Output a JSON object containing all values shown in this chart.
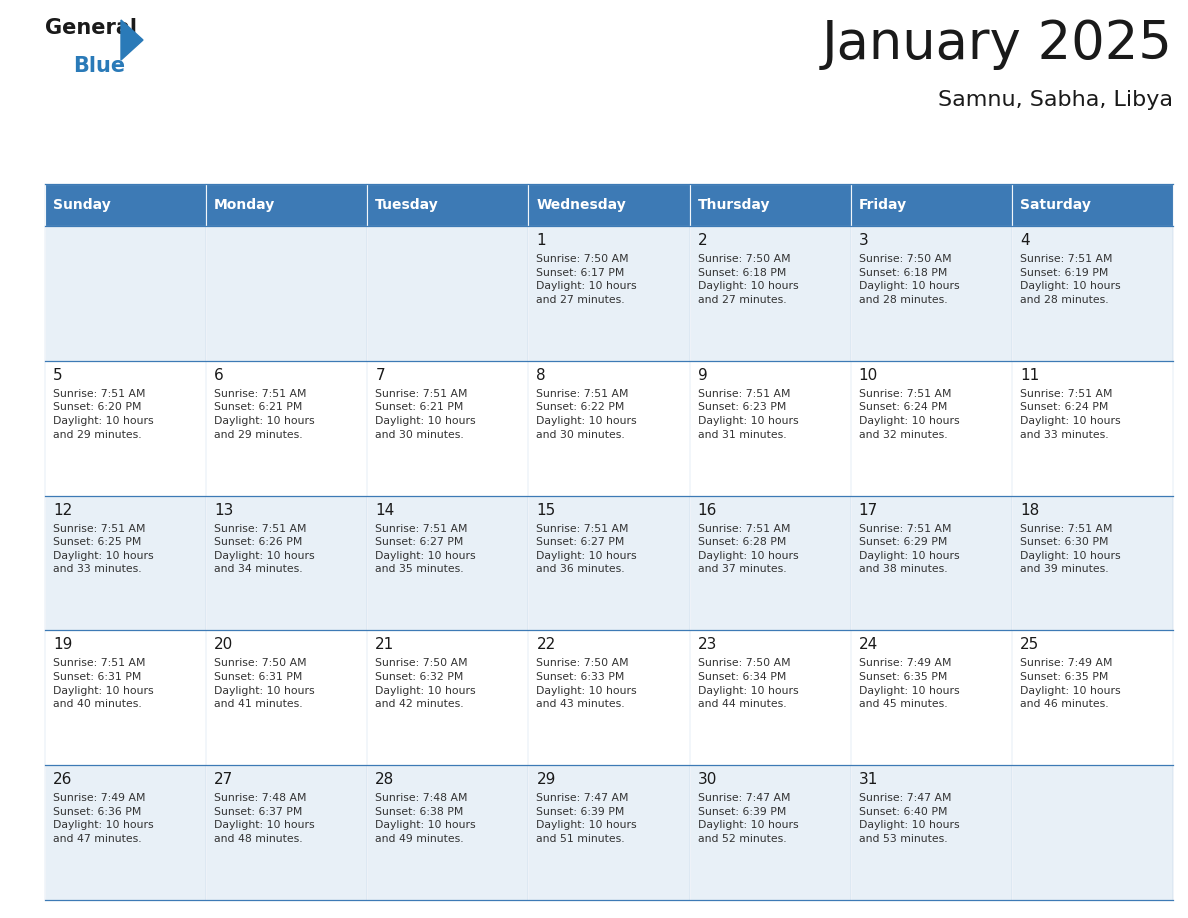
{
  "title": "January 2025",
  "subtitle": "Samnu, Sabha, Libya",
  "header_bg": "#3d7ab5",
  "header_text": "#ffffff",
  "days_of_week": [
    "Sunday",
    "Monday",
    "Tuesday",
    "Wednesday",
    "Thursday",
    "Friday",
    "Saturday"
  ],
  "row_bg_even": "#e8f0f7",
  "row_bg_odd": "#ffffff",
  "cell_border": "#3d7ab5",
  "day_num_color": "#1a1a1a",
  "info_text_color": "#333333",
  "calendar": [
    [
      {
        "day": null,
        "info": ""
      },
      {
        "day": null,
        "info": ""
      },
      {
        "day": null,
        "info": ""
      },
      {
        "day": "1",
        "info": "Sunrise: 7:50 AM\nSunset: 6:17 PM\nDaylight: 10 hours\nand 27 minutes."
      },
      {
        "day": "2",
        "info": "Sunrise: 7:50 AM\nSunset: 6:18 PM\nDaylight: 10 hours\nand 27 minutes."
      },
      {
        "day": "3",
        "info": "Sunrise: 7:50 AM\nSunset: 6:18 PM\nDaylight: 10 hours\nand 28 minutes."
      },
      {
        "day": "4",
        "info": "Sunrise: 7:51 AM\nSunset: 6:19 PM\nDaylight: 10 hours\nand 28 minutes."
      }
    ],
    [
      {
        "day": "5",
        "info": "Sunrise: 7:51 AM\nSunset: 6:20 PM\nDaylight: 10 hours\nand 29 minutes."
      },
      {
        "day": "6",
        "info": "Sunrise: 7:51 AM\nSunset: 6:21 PM\nDaylight: 10 hours\nand 29 minutes."
      },
      {
        "day": "7",
        "info": "Sunrise: 7:51 AM\nSunset: 6:21 PM\nDaylight: 10 hours\nand 30 minutes."
      },
      {
        "day": "8",
        "info": "Sunrise: 7:51 AM\nSunset: 6:22 PM\nDaylight: 10 hours\nand 30 minutes."
      },
      {
        "day": "9",
        "info": "Sunrise: 7:51 AM\nSunset: 6:23 PM\nDaylight: 10 hours\nand 31 minutes."
      },
      {
        "day": "10",
        "info": "Sunrise: 7:51 AM\nSunset: 6:24 PM\nDaylight: 10 hours\nand 32 minutes."
      },
      {
        "day": "11",
        "info": "Sunrise: 7:51 AM\nSunset: 6:24 PM\nDaylight: 10 hours\nand 33 minutes."
      }
    ],
    [
      {
        "day": "12",
        "info": "Sunrise: 7:51 AM\nSunset: 6:25 PM\nDaylight: 10 hours\nand 33 minutes."
      },
      {
        "day": "13",
        "info": "Sunrise: 7:51 AM\nSunset: 6:26 PM\nDaylight: 10 hours\nand 34 minutes."
      },
      {
        "day": "14",
        "info": "Sunrise: 7:51 AM\nSunset: 6:27 PM\nDaylight: 10 hours\nand 35 minutes."
      },
      {
        "day": "15",
        "info": "Sunrise: 7:51 AM\nSunset: 6:27 PM\nDaylight: 10 hours\nand 36 minutes."
      },
      {
        "day": "16",
        "info": "Sunrise: 7:51 AM\nSunset: 6:28 PM\nDaylight: 10 hours\nand 37 minutes."
      },
      {
        "day": "17",
        "info": "Sunrise: 7:51 AM\nSunset: 6:29 PM\nDaylight: 10 hours\nand 38 minutes."
      },
      {
        "day": "18",
        "info": "Sunrise: 7:51 AM\nSunset: 6:30 PM\nDaylight: 10 hours\nand 39 minutes."
      }
    ],
    [
      {
        "day": "19",
        "info": "Sunrise: 7:51 AM\nSunset: 6:31 PM\nDaylight: 10 hours\nand 40 minutes."
      },
      {
        "day": "20",
        "info": "Sunrise: 7:50 AM\nSunset: 6:31 PM\nDaylight: 10 hours\nand 41 minutes."
      },
      {
        "day": "21",
        "info": "Sunrise: 7:50 AM\nSunset: 6:32 PM\nDaylight: 10 hours\nand 42 minutes."
      },
      {
        "day": "22",
        "info": "Sunrise: 7:50 AM\nSunset: 6:33 PM\nDaylight: 10 hours\nand 43 minutes."
      },
      {
        "day": "23",
        "info": "Sunrise: 7:50 AM\nSunset: 6:34 PM\nDaylight: 10 hours\nand 44 minutes."
      },
      {
        "day": "24",
        "info": "Sunrise: 7:49 AM\nSunset: 6:35 PM\nDaylight: 10 hours\nand 45 minutes."
      },
      {
        "day": "25",
        "info": "Sunrise: 7:49 AM\nSunset: 6:35 PM\nDaylight: 10 hours\nand 46 minutes."
      }
    ],
    [
      {
        "day": "26",
        "info": "Sunrise: 7:49 AM\nSunset: 6:36 PM\nDaylight: 10 hours\nand 47 minutes."
      },
      {
        "day": "27",
        "info": "Sunrise: 7:48 AM\nSunset: 6:37 PM\nDaylight: 10 hours\nand 48 minutes."
      },
      {
        "day": "28",
        "info": "Sunrise: 7:48 AM\nSunset: 6:38 PM\nDaylight: 10 hours\nand 49 minutes."
      },
      {
        "day": "29",
        "info": "Sunrise: 7:47 AM\nSunset: 6:39 PM\nDaylight: 10 hours\nand 51 minutes."
      },
      {
        "day": "30",
        "info": "Sunrise: 7:47 AM\nSunset: 6:39 PM\nDaylight: 10 hours\nand 52 minutes."
      },
      {
        "day": "31",
        "info": "Sunrise: 7:47 AM\nSunset: 6:40 PM\nDaylight: 10 hours\nand 53 minutes."
      },
      {
        "day": null,
        "info": ""
      }
    ]
  ],
  "logo_color_general": "#1a1a1a",
  "logo_color_blue": "#2a7ab8",
  "logo_triangle_color": "#2a7ab8",
  "fig_width": 11.88,
  "fig_height": 9.18,
  "dpi": 100
}
